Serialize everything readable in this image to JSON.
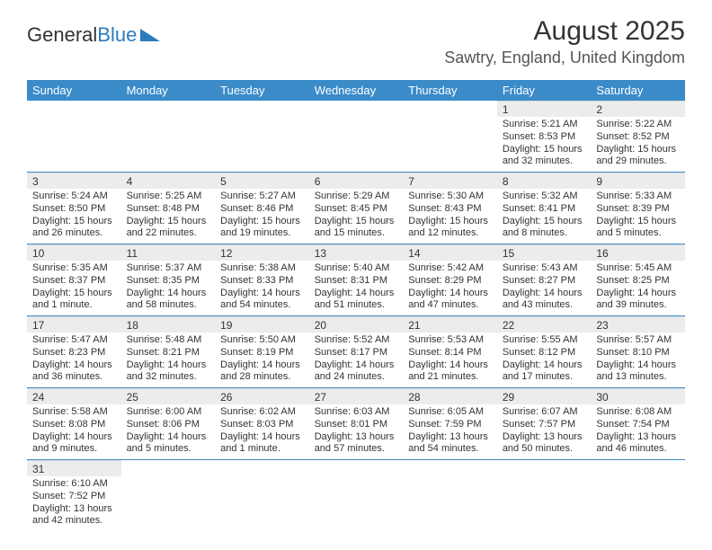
{
  "colors": {
    "header_bg": "#3b8bc9",
    "header_text": "#ffffff",
    "daynum_bg": "#ececec",
    "text": "#333333",
    "row_border": "#3b8bc9",
    "accent_blue": "#2b7bbf"
  },
  "logo": {
    "part1": "General",
    "part2": "Blue"
  },
  "title": "August 2025",
  "location": "Sawtry, England, United Kingdom",
  "day_headers": [
    "Sunday",
    "Monday",
    "Tuesday",
    "Wednesday",
    "Thursday",
    "Friday",
    "Saturday"
  ],
  "weeks": [
    [
      null,
      null,
      null,
      null,
      null,
      {
        "n": "1",
        "sr": "5:21 AM",
        "ss": "8:53 PM",
        "dl": "15 hours and 32 minutes."
      },
      {
        "n": "2",
        "sr": "5:22 AM",
        "ss": "8:52 PM",
        "dl": "15 hours and 29 minutes."
      }
    ],
    [
      {
        "n": "3",
        "sr": "5:24 AM",
        "ss": "8:50 PM",
        "dl": "15 hours and 26 minutes."
      },
      {
        "n": "4",
        "sr": "5:25 AM",
        "ss": "8:48 PM",
        "dl": "15 hours and 22 minutes."
      },
      {
        "n": "5",
        "sr": "5:27 AM",
        "ss": "8:46 PM",
        "dl": "15 hours and 19 minutes."
      },
      {
        "n": "6",
        "sr": "5:29 AM",
        "ss": "8:45 PM",
        "dl": "15 hours and 15 minutes."
      },
      {
        "n": "7",
        "sr": "5:30 AM",
        "ss": "8:43 PM",
        "dl": "15 hours and 12 minutes."
      },
      {
        "n": "8",
        "sr": "5:32 AM",
        "ss": "8:41 PM",
        "dl": "15 hours and 8 minutes."
      },
      {
        "n": "9",
        "sr": "5:33 AM",
        "ss": "8:39 PM",
        "dl": "15 hours and 5 minutes."
      }
    ],
    [
      {
        "n": "10",
        "sr": "5:35 AM",
        "ss": "8:37 PM",
        "dl": "15 hours and 1 minute."
      },
      {
        "n": "11",
        "sr": "5:37 AM",
        "ss": "8:35 PM",
        "dl": "14 hours and 58 minutes."
      },
      {
        "n": "12",
        "sr": "5:38 AM",
        "ss": "8:33 PM",
        "dl": "14 hours and 54 minutes."
      },
      {
        "n": "13",
        "sr": "5:40 AM",
        "ss": "8:31 PM",
        "dl": "14 hours and 51 minutes."
      },
      {
        "n": "14",
        "sr": "5:42 AM",
        "ss": "8:29 PM",
        "dl": "14 hours and 47 minutes."
      },
      {
        "n": "15",
        "sr": "5:43 AM",
        "ss": "8:27 PM",
        "dl": "14 hours and 43 minutes."
      },
      {
        "n": "16",
        "sr": "5:45 AM",
        "ss": "8:25 PM",
        "dl": "14 hours and 39 minutes."
      }
    ],
    [
      {
        "n": "17",
        "sr": "5:47 AM",
        "ss": "8:23 PM",
        "dl": "14 hours and 36 minutes."
      },
      {
        "n": "18",
        "sr": "5:48 AM",
        "ss": "8:21 PM",
        "dl": "14 hours and 32 minutes."
      },
      {
        "n": "19",
        "sr": "5:50 AM",
        "ss": "8:19 PM",
        "dl": "14 hours and 28 minutes."
      },
      {
        "n": "20",
        "sr": "5:52 AM",
        "ss": "8:17 PM",
        "dl": "14 hours and 24 minutes."
      },
      {
        "n": "21",
        "sr": "5:53 AM",
        "ss": "8:14 PM",
        "dl": "14 hours and 21 minutes."
      },
      {
        "n": "22",
        "sr": "5:55 AM",
        "ss": "8:12 PM",
        "dl": "14 hours and 17 minutes."
      },
      {
        "n": "23",
        "sr": "5:57 AM",
        "ss": "8:10 PM",
        "dl": "14 hours and 13 minutes."
      }
    ],
    [
      {
        "n": "24",
        "sr": "5:58 AM",
        "ss": "8:08 PM",
        "dl": "14 hours and 9 minutes."
      },
      {
        "n": "25",
        "sr": "6:00 AM",
        "ss": "8:06 PM",
        "dl": "14 hours and 5 minutes."
      },
      {
        "n": "26",
        "sr": "6:02 AM",
        "ss": "8:03 PM",
        "dl": "14 hours and 1 minute."
      },
      {
        "n": "27",
        "sr": "6:03 AM",
        "ss": "8:01 PM",
        "dl": "13 hours and 57 minutes."
      },
      {
        "n": "28",
        "sr": "6:05 AM",
        "ss": "7:59 PM",
        "dl": "13 hours and 54 minutes."
      },
      {
        "n": "29",
        "sr": "6:07 AM",
        "ss": "7:57 PM",
        "dl": "13 hours and 50 minutes."
      },
      {
        "n": "30",
        "sr": "6:08 AM",
        "ss": "7:54 PM",
        "dl": "13 hours and 46 minutes."
      }
    ],
    [
      {
        "n": "31",
        "sr": "6:10 AM",
        "ss": "7:52 PM",
        "dl": "13 hours and 42 minutes."
      },
      null,
      null,
      null,
      null,
      null,
      null
    ]
  ],
  "labels": {
    "sunrise": "Sunrise: ",
    "sunset": "Sunset: ",
    "daylight": "Daylight: "
  }
}
